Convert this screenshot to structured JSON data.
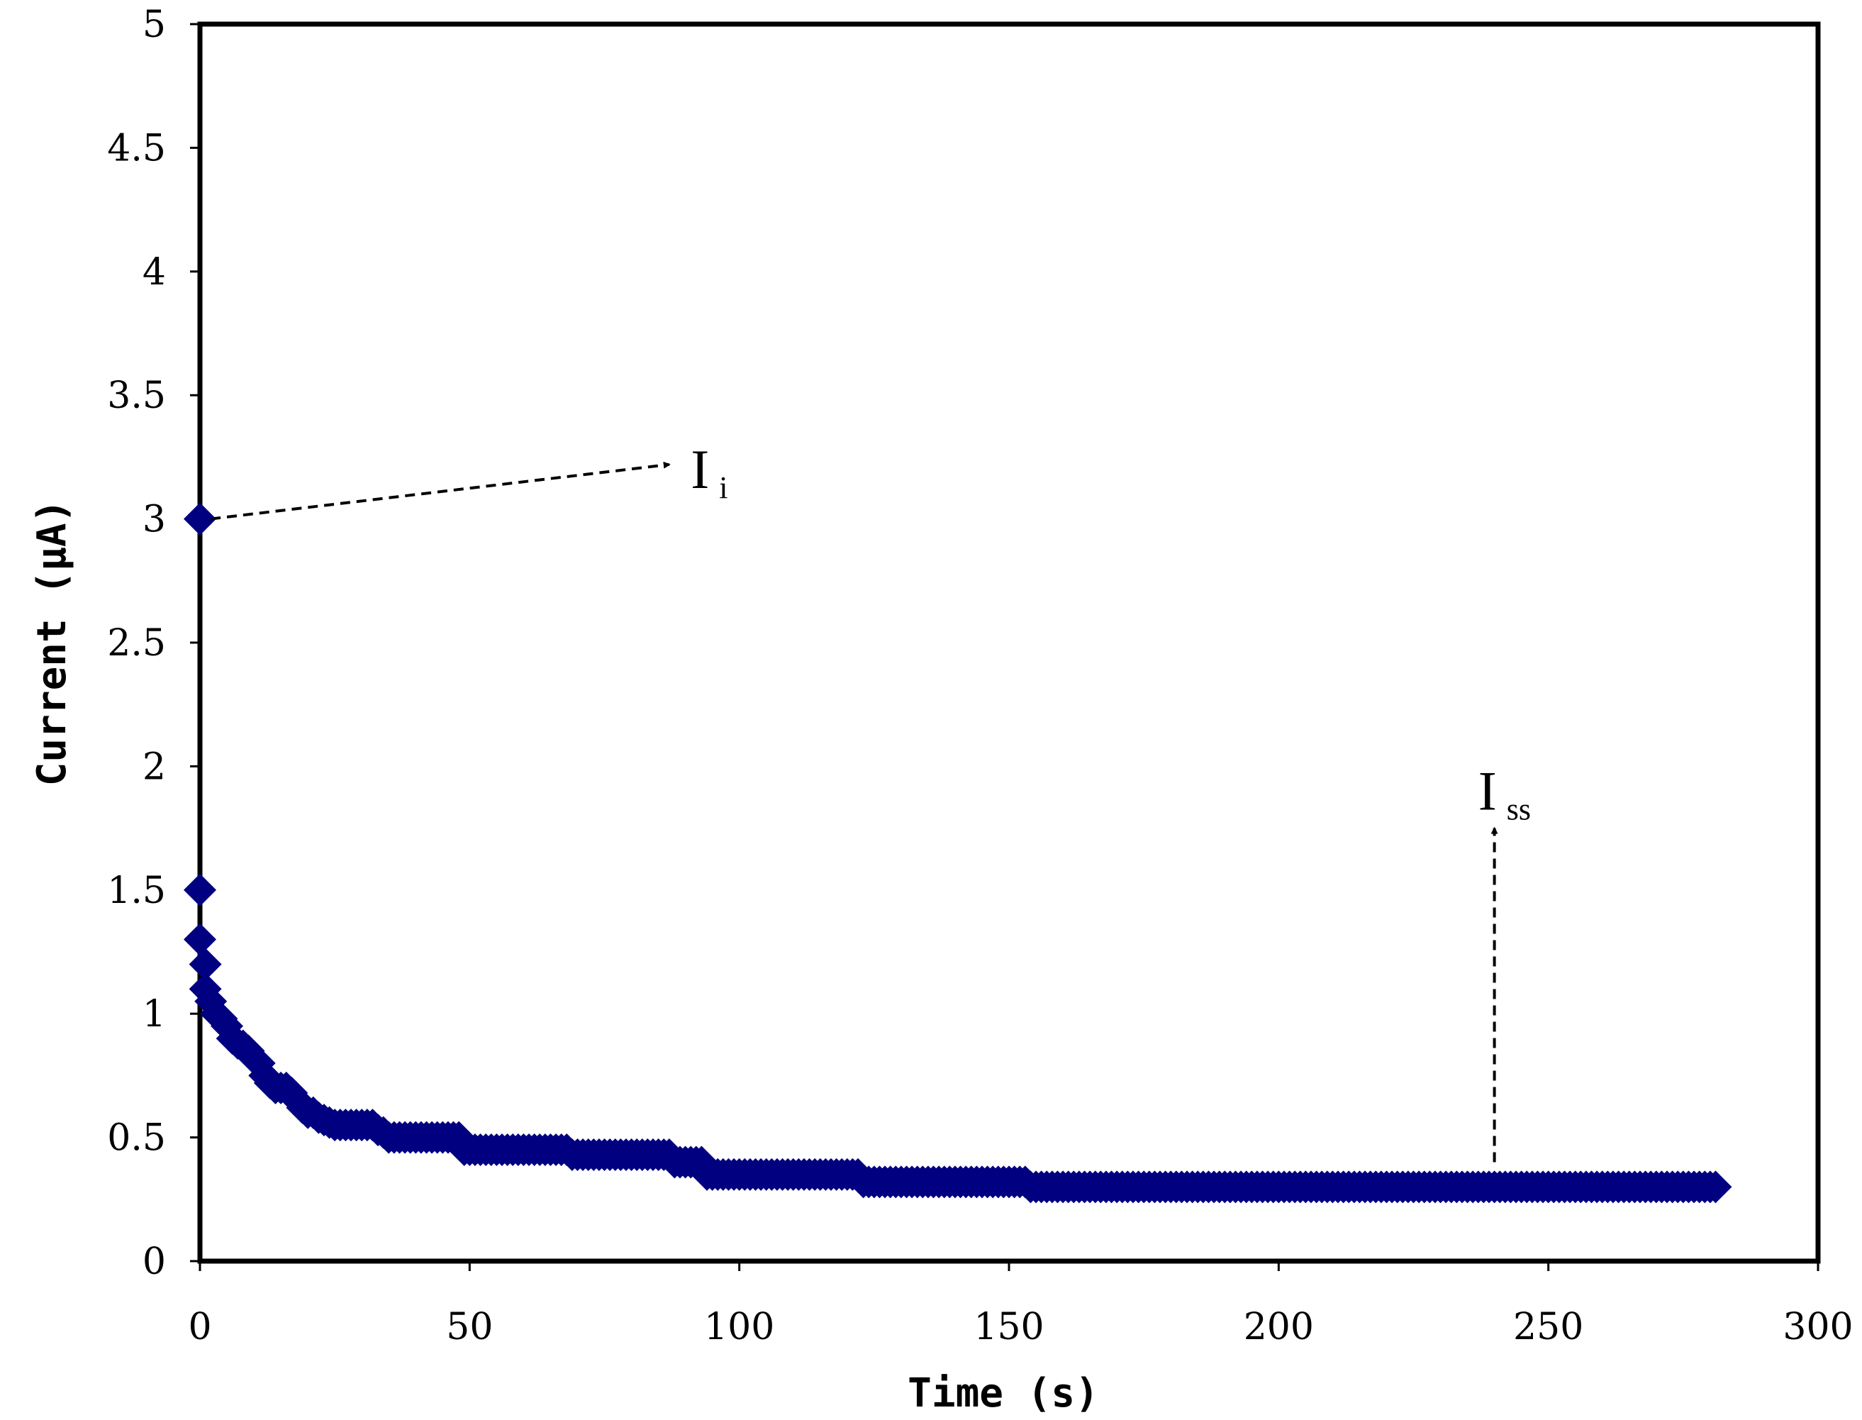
{
  "chart_data": {
    "type": "scatter",
    "title": "",
    "xlabel": "Time (s)",
    "ylabel": "Current (μA)",
    "xlim": [
      0,
      300
    ],
    "ylim": [
      0,
      5
    ],
    "xticks": [
      "0",
      "50",
      "100",
      "150",
      "200",
      "250",
      "300"
    ],
    "xtick_values": [
      0,
      50,
      100,
      150,
      200,
      250,
      300
    ],
    "yticks": [
      "0",
      "0.5",
      "1",
      "1.5",
      "2",
      "2.5",
      "3",
      "3.5",
      "4",
      "4.5",
      "5"
    ],
    "ytick_values": [
      0,
      0.5,
      1,
      1.5,
      2,
      2.5,
      3,
      3.5,
      4,
      4.5,
      5
    ],
    "grid": false,
    "series": [
      {
        "name": "Current",
        "color": "#000080",
        "marker": "diamond",
        "segments": [
          {
            "t_start": 35,
            "t_end": 48,
            "y": 0.5
          },
          {
            "t_start": 49,
            "t_end": 68,
            "y": 0.45
          },
          {
            "t_start": 69,
            "t_end": 87,
            "y": 0.43
          },
          {
            "t_start": 88,
            "t_end": 93,
            "y": 0.4
          },
          {
            "t_start": 94,
            "t_end": 122,
            "y": 0.35
          },
          {
            "t_start": 123,
            "t_end": 153,
            "y": 0.32
          },
          {
            "t_start": 154,
            "t_end": 281,
            "y": 0.3
          }
        ],
        "points": [
          [
            0,
            3.0
          ],
          [
            0,
            1.5
          ],
          [
            0,
            1.3
          ],
          [
            1,
            1.2
          ],
          [
            1,
            1.1
          ],
          [
            2,
            1.05
          ],
          [
            3,
            1.0
          ],
          [
            4,
            0.98
          ],
          [
            5,
            0.95
          ],
          [
            6,
            0.9
          ],
          [
            7,
            0.88
          ],
          [
            8,
            0.87
          ],
          [
            9,
            0.85
          ],
          [
            10,
            0.82
          ],
          [
            11,
            0.8
          ],
          [
            12,
            0.75
          ],
          [
            13,
            0.72
          ],
          [
            14,
            0.7
          ],
          [
            15,
            0.7
          ],
          [
            16,
            0.7
          ],
          [
            17,
            0.68
          ],
          [
            18,
            0.65
          ],
          [
            19,
            0.62
          ],
          [
            20,
            0.6
          ],
          [
            21,
            0.6
          ],
          [
            22,
            0.58
          ],
          [
            23,
            0.57
          ],
          [
            24,
            0.56
          ],
          [
            25,
            0.55
          ],
          [
            26,
            0.55
          ],
          [
            27,
            0.55
          ],
          [
            28,
            0.55
          ],
          [
            29,
            0.55
          ],
          [
            30,
            0.55
          ],
          [
            31,
            0.55
          ],
          [
            32,
            0.55
          ],
          [
            33,
            0.53
          ],
          [
            34,
            0.52
          ]
        ]
      }
    ],
    "annotations": [
      {
        "label": "I",
        "subscript": "i",
        "from": [
          2,
          3.0
        ],
        "to": [
          87,
          3.22
        ],
        "text_at": [
          91,
          3.2
        ]
      },
      {
        "label": "I",
        "subscript": "ss",
        "from": [
          240,
          0.4
        ],
        "to": [
          240,
          1.75
        ],
        "text_at": [
          237,
          1.9
        ]
      }
    ]
  }
}
